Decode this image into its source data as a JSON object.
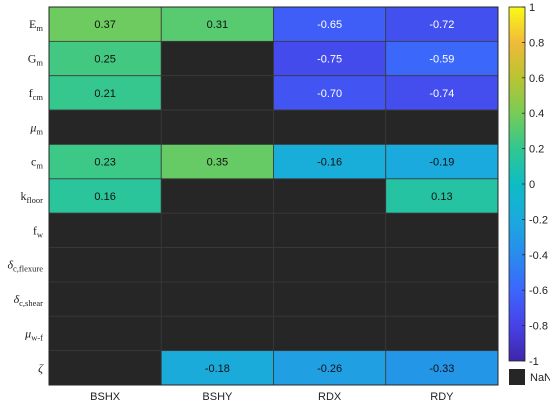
{
  "chart_data": {
    "type": "heatmap",
    "title": "",
    "xlabel": "",
    "ylabel": "",
    "columns": [
      "BSHX",
      "BSHY",
      "RDX",
      "RDY"
    ],
    "rows": [
      {
        "id": "Em",
        "main": "E",
        "sub": "m"
      },
      {
        "id": "Gm",
        "main": "G",
        "sub": "m"
      },
      {
        "id": "fcm",
        "main": "f",
        "sub": "cm"
      },
      {
        "id": "mu_m",
        "main": "μ",
        "sub": "m"
      },
      {
        "id": "cm",
        "main": "c",
        "sub": "m"
      },
      {
        "id": "kfloor",
        "main": "k",
        "sub": "floor"
      },
      {
        "id": "fw",
        "main": "f",
        "sub": "w"
      },
      {
        "id": "delta_c_flexure",
        "main": "δ",
        "sub": "c,flexure"
      },
      {
        "id": "delta_c_shear",
        "main": "δ",
        "sub": "c,shear"
      },
      {
        "id": "mu_wf",
        "main": "μ",
        "sub": "w-f"
      },
      {
        "id": "zeta",
        "main": "ζ",
        "sub": ""
      }
    ],
    "values": [
      [
        0.37,
        0.31,
        -0.65,
        -0.72
      ],
      [
        0.25,
        null,
        -0.75,
        -0.59
      ],
      [
        0.21,
        null,
        -0.7,
        -0.74
      ],
      [
        null,
        null,
        null,
        null
      ],
      [
        0.23,
        0.35,
        -0.16,
        -0.19
      ],
      [
        0.16,
        null,
        null,
        0.13
      ],
      [
        null,
        null,
        null,
        null
      ],
      [
        null,
        null,
        null,
        null
      ],
      [
        null,
        null,
        null,
        null
      ],
      [
        null,
        null,
        null,
        null
      ],
      [
        null,
        -0.18,
        -0.26,
        -0.33
      ]
    ],
    "value_labels": [
      [
        "0.37",
        "0.31",
        "-0.65",
        "-0.72"
      ],
      [
        "0.25",
        "",
        "-0.75",
        "-0.59"
      ],
      [
        "0.21",
        "",
        "-0.70",
        "-0.74"
      ],
      [
        "",
        "",
        "",
        ""
      ],
      [
        "0.23",
        "0.35",
        "-0.16",
        "-0.19"
      ],
      [
        "0.16",
        "",
        "",
        "0.13"
      ],
      [
        "",
        "",
        "",
        ""
      ],
      [
        "",
        "",
        "",
        ""
      ],
      [
        "",
        "",
        "",
        ""
      ],
      [
        "",
        "",
        "",
        ""
      ],
      [
        "",
        "-0.18",
        "-0.26",
        "-0.33"
      ]
    ],
    "clim": [
      -1,
      1
    ],
    "colormap": "parula",
    "colorbar_ticks": [
      1,
      0.8,
      0.6,
      0.4,
      0.2,
      0,
      -0.2,
      -0.4,
      -0.6,
      -0.8,
      -1
    ],
    "nan_label": "NaN",
    "nan_color": "#262626",
    "legend_position": "right"
  }
}
